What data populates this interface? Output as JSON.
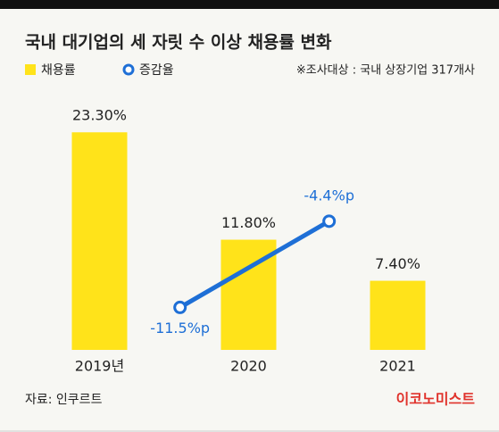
{
  "chart_data": {
    "type": "bar",
    "title": "국내 대기업의 세 자릿 수 이상 채용률 변화",
    "note": "※조사대상 : 국내 상장기업 317개사",
    "source": "자료: 인쿠르트",
    "brand": "이코노미스트",
    "categories": [
      "2019년",
      "2020",
      "2021"
    ],
    "ylim": [
      0,
      26
    ],
    "y2lim": [
      -15,
      5
    ],
    "series": [
      {
        "name": "채용률",
        "type": "bar",
        "color": "#ffe31a",
        "values": [
          23.3,
          11.8,
          7.4
        ],
        "value_labels": [
          "23.30%",
          "11.80%",
          "7.40%"
        ]
      },
      {
        "name": "증감율",
        "type": "line",
        "axis": "y2",
        "color": "#1e6fd6",
        "values": [
          null,
          -11.5,
          -4.4
        ],
        "value_labels": [
          null,
          "-11.5%p",
          "-4.4%p"
        ]
      }
    ]
  }
}
